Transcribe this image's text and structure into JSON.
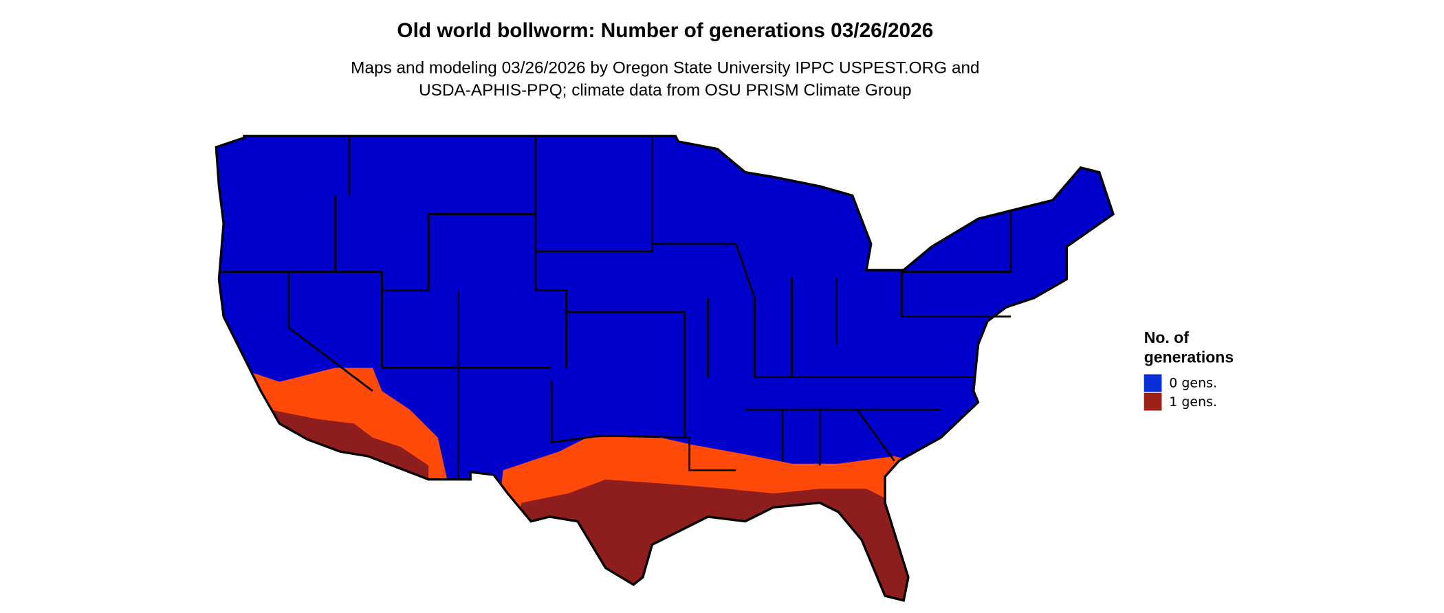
{
  "title": "Old world bollworm: Number of generations 03/26/2026",
  "subtitle": [
    "Maps and modeling 03/26/2026 by Oregon State University IPPC USPEST.ORG and",
    "USDA-APHIS-PPQ; climate data from OSU PRISM Climate Group"
  ],
  "legend": {
    "title": [
      "No. of",
      "generations"
    ],
    "items": [
      {
        "label": "0 gens.",
        "color": "#0a2ed8"
      },
      {
        "label": "1 gens.",
        "color": "#9b2018"
      }
    ]
  }
}
